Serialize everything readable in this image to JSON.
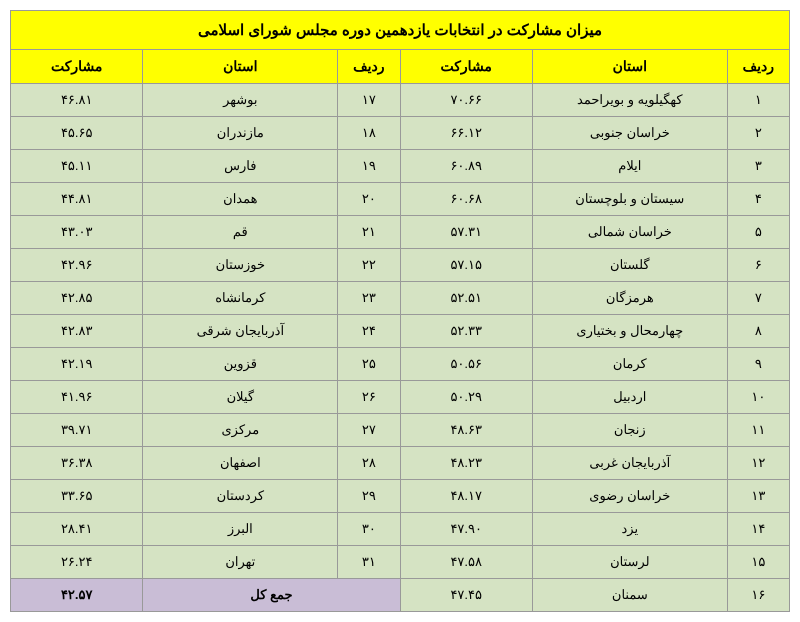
{
  "title": "میزان مشارکت در انتخابات یازدهمین دوره مجلس شورای اسلامی",
  "headers": {
    "row": "ردیف",
    "province": "استان",
    "participation": "مشارکت"
  },
  "colors": {
    "header_bg": "#ffff00",
    "data_bg": "#d5e3c3",
    "total_bg": "#c9bdd6",
    "border": "#999999"
  },
  "left": [
    {
      "n": "۱",
      "p": "کهگیلویه و بویراحمد",
      "v": "۷۰.۶۶"
    },
    {
      "n": "۲",
      "p": "خراسان جنوبی",
      "v": "۶۶.۱۲"
    },
    {
      "n": "۳",
      "p": "ایلام",
      "v": "۶۰.۸۹"
    },
    {
      "n": "۴",
      "p": "سیستان و بلوچستان",
      "v": "۶۰.۶۸"
    },
    {
      "n": "۵",
      "p": "خراسان شمالی",
      "v": "۵۷.۳۱"
    },
    {
      "n": "۶",
      "p": "گلستان",
      "v": "۵۷.۱۵"
    },
    {
      "n": "۷",
      "p": "هرمزگان",
      "v": "۵۲.۵۱"
    },
    {
      "n": "۸",
      "p": "چهارمحال و بختیاری",
      "v": "۵۲.۳۳"
    },
    {
      "n": "۹",
      "p": "کرمان",
      "v": "۵۰.۵۶"
    },
    {
      "n": "۱۰",
      "p": "اردبیل",
      "v": "۵۰.۲۹"
    },
    {
      "n": "۱۱",
      "p": "زنجان",
      "v": "۴۸.۶۳"
    },
    {
      "n": "۱۲",
      "p": "آذربایجان غربی",
      "v": "۴۸.۲۳"
    },
    {
      "n": "۱۳",
      "p": "خراسان رضوی",
      "v": "۴۸.۱۷"
    },
    {
      "n": "۱۴",
      "p": "یزد",
      "v": "۴۷.۹۰"
    },
    {
      "n": "۱۵",
      "p": "لرستان",
      "v": "۴۷.۵۸"
    },
    {
      "n": "۱۶",
      "p": "سمنان",
      "v": "۴۷.۴۵"
    }
  ],
  "right": [
    {
      "n": "۱۷",
      "p": "بوشهر",
      "v": "۴۶.۸۱"
    },
    {
      "n": "۱۸",
      "p": "مازندران",
      "v": "۴۵.۶۵"
    },
    {
      "n": "۱۹",
      "p": "فارس",
      "v": "۴۵.۱۱"
    },
    {
      "n": "۲۰",
      "p": "همدان",
      "v": "۴۴.۸۱"
    },
    {
      "n": "۲۱",
      "p": "قم",
      "v": "۴۳.۰۳"
    },
    {
      "n": "۲۲",
      "p": "خوزستان",
      "v": "۴۲.۹۶"
    },
    {
      "n": "۲۳",
      "p": "کرمانشاه",
      "v": "۴۲.۸۵"
    },
    {
      "n": "۲۴",
      "p": "آذربایجان شرقی",
      "v": "۴۲.۸۳"
    },
    {
      "n": "۲۵",
      "p": "قزوین",
      "v": "۴۲.۱۹"
    },
    {
      "n": "۲۶",
      "p": "گیلان",
      "v": "۴۱.۹۶"
    },
    {
      "n": "۲۷",
      "p": "مرکزی",
      "v": "۳۹.۷۱"
    },
    {
      "n": "۲۸",
      "p": "اصفهان",
      "v": "۳۶.۳۸"
    },
    {
      "n": "۲۹",
      "p": "کردستان",
      "v": "۳۳.۶۵"
    },
    {
      "n": "۳۰",
      "p": "البرز",
      "v": "۲۸.۴۱"
    },
    {
      "n": "۳۱",
      "p": "تهران",
      "v": "۲۶.۲۴"
    }
  ],
  "total": {
    "label": "جمع کل",
    "value": "۴۲.۵۷"
  }
}
